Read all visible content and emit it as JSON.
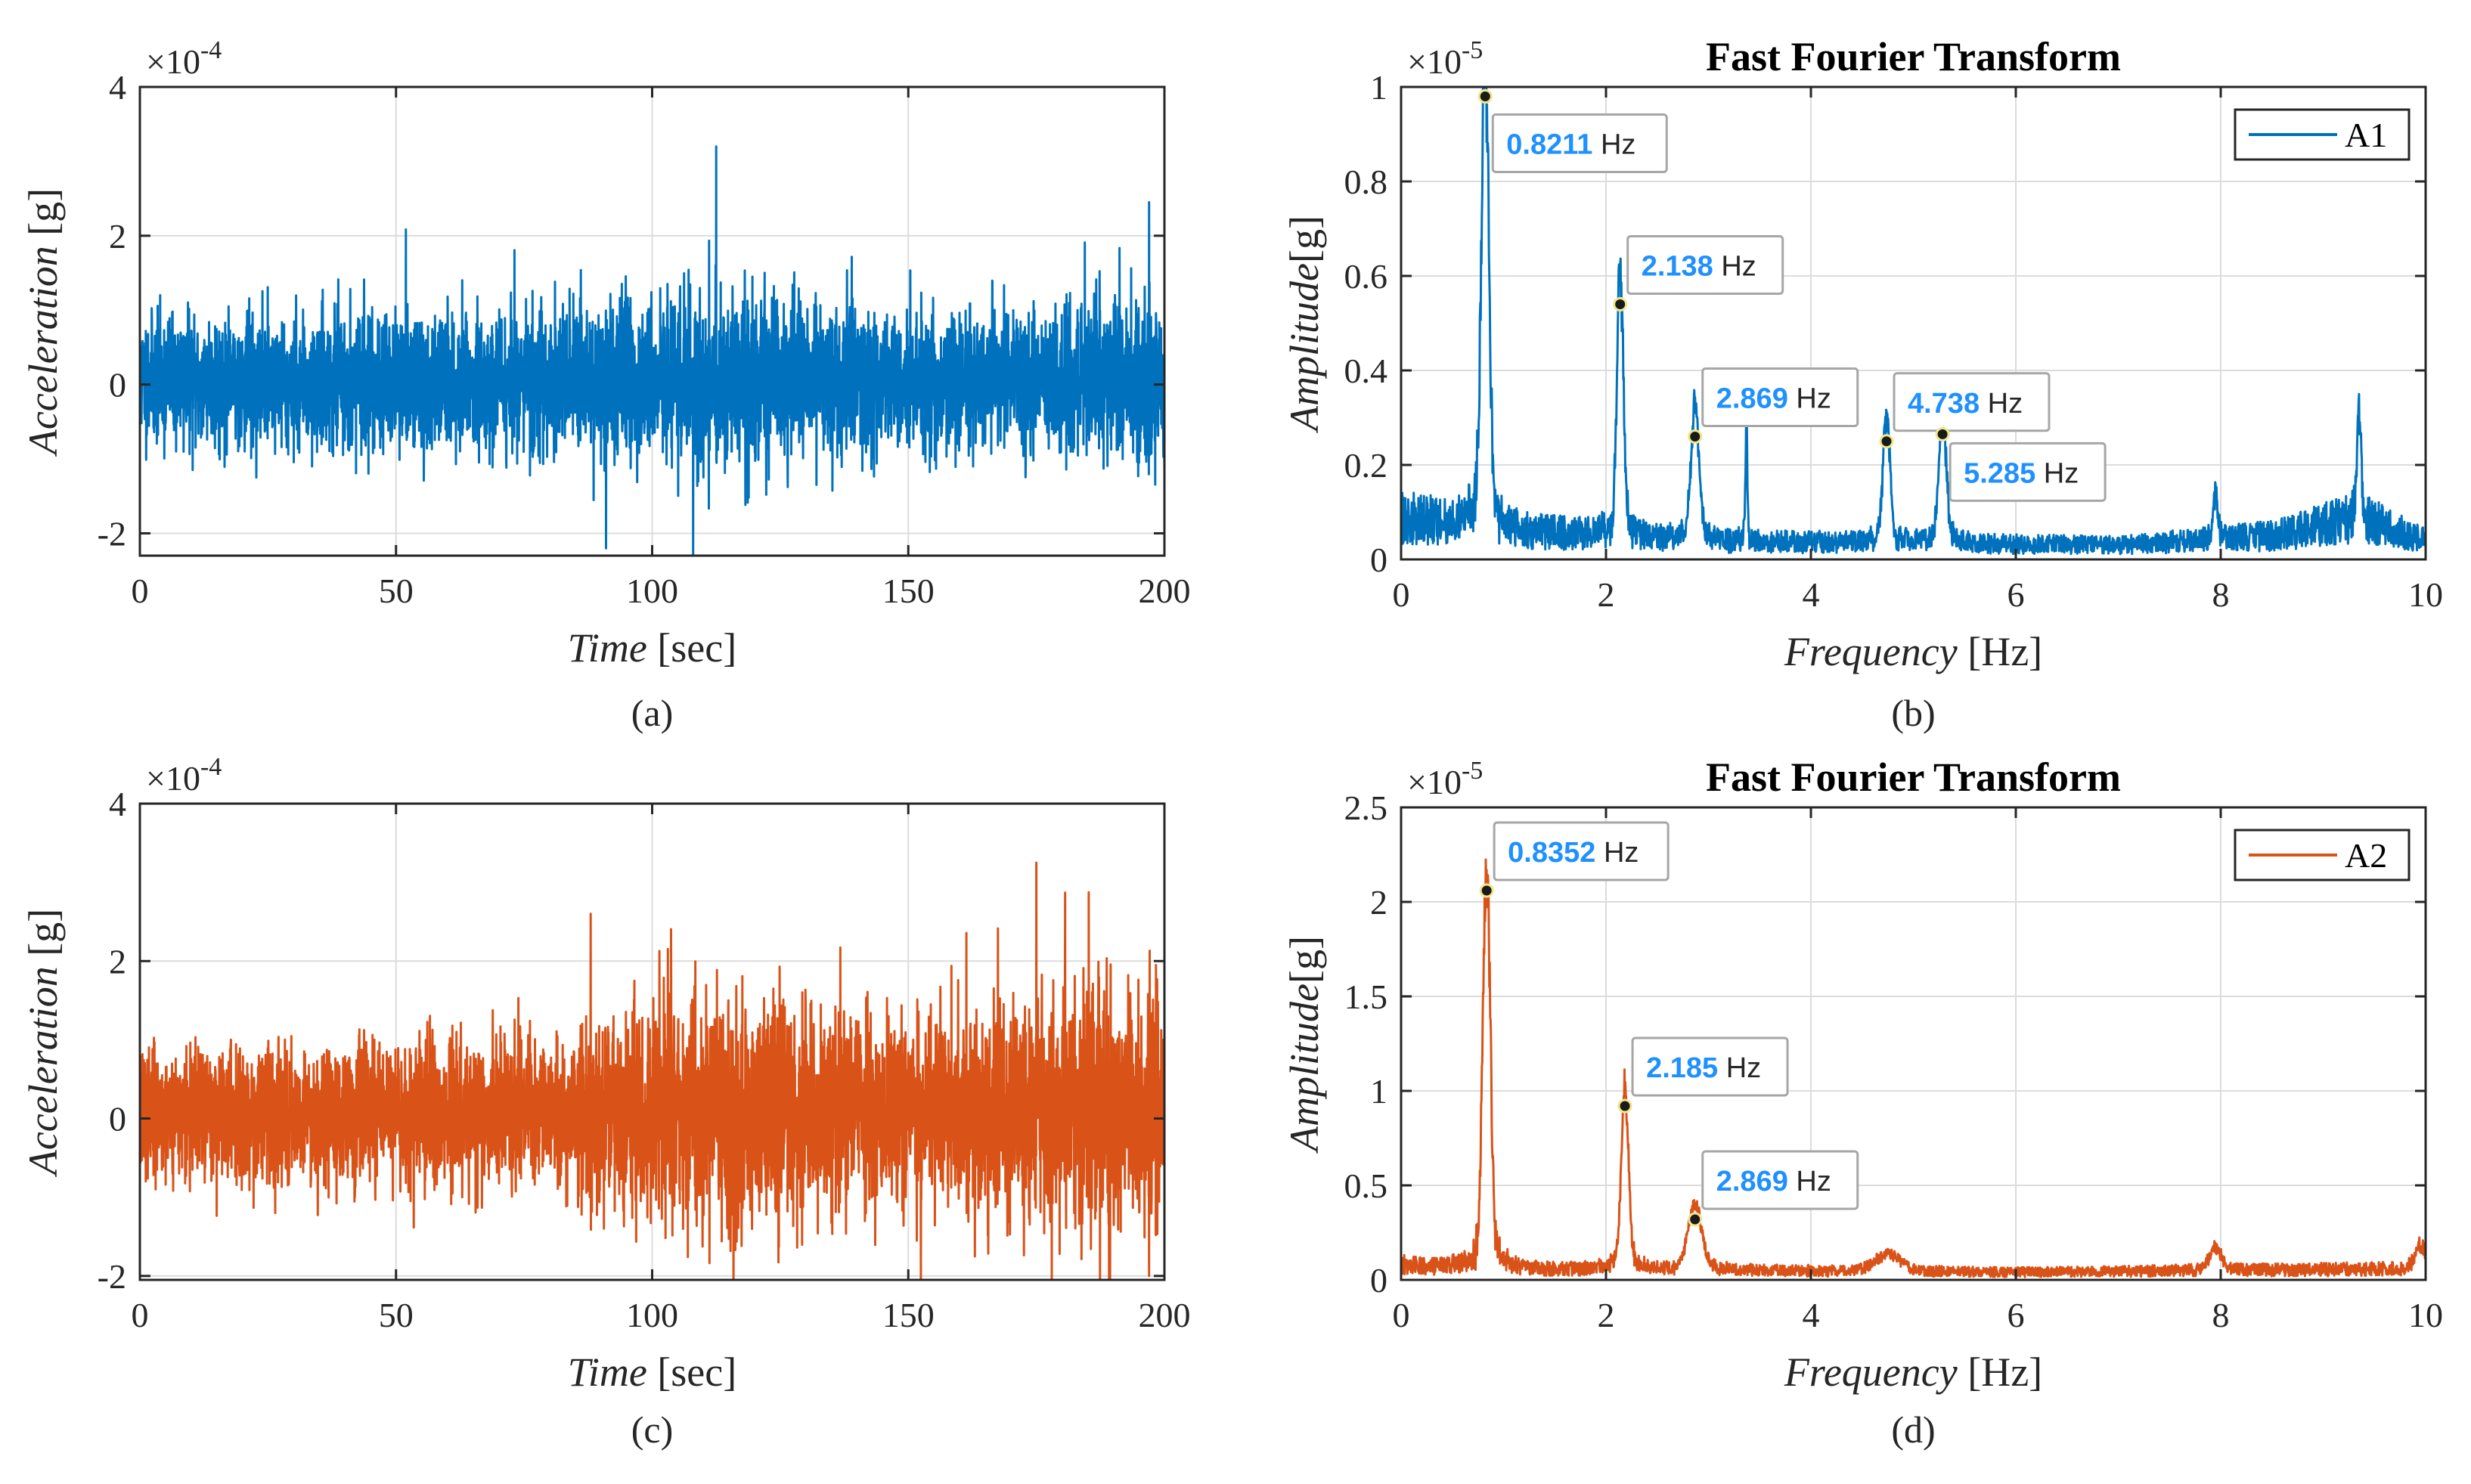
{
  "chart_data": [
    {
      "id": "a",
      "type": "line",
      "caption": "(a)",
      "title": "",
      "xlabel_italic": "Time",
      "xlabel_unit": "[sec]",
      "ylabel_italic": "Acceleration",
      "ylabel_unit": "[g]",
      "exponent_base": "×10",
      "exponent_power": "-4",
      "xlim": [
        0,
        200
      ],
      "ylim": [
        -2.3,
        4
      ],
      "xticks": [
        0,
        50,
        100,
        150,
        200
      ],
      "yticks": [
        -2,
        0,
        2,
        4
      ],
      "grid": true,
      "series": [
        {
          "name": "A1",
          "color": "#0072BD",
          "kind": "noise",
          "seed": 11,
          "envelope": [
            [
              0,
              1.0
            ],
            [
              40,
              1.05
            ],
            [
              60,
              1.05
            ],
            [
              100,
              1.25
            ],
            [
              115,
              1.35
            ],
            [
              150,
              1.1
            ],
            [
              160,
              1.05
            ],
            [
              175,
              1.2
            ],
            [
              200,
              1.25
            ]
          ],
          "spikes": [
            [
              112.5,
              3.2
            ],
            [
              108,
              -2.3
            ],
            [
              91,
              -2.2
            ],
            [
              197,
              2.45
            ]
          ]
        }
      ]
    },
    {
      "id": "b",
      "type": "line",
      "caption": "(b)",
      "title": "Fast Fourier Transform",
      "xlabel_italic": "Frequency",
      "xlabel_unit": "[Hz]",
      "ylabel_italic": "Amplitude",
      "ylabel_unit": "[g]",
      "exponent_base": "×10",
      "exponent_power": "-5",
      "xlim": [
        0,
        10
      ],
      "ylim": [
        0,
        1
      ],
      "xticks": [
        0,
        2,
        4,
        6,
        8,
        10
      ],
      "yticks": [
        0,
        0.2,
        0.4,
        0.6,
        0.8,
        1
      ],
      "grid": true,
      "legend": {
        "label": "A1",
        "location": "top-right"
      },
      "series": [
        {
          "name": "A1",
          "color": "#0072BD",
          "kind": "spectrum",
          "seed": 23,
          "floor": [
            [
              0,
              0.09
            ],
            [
              1.2,
              0.06
            ],
            [
              3,
              0.04
            ],
            [
              7,
              0.03
            ],
            [
              8.5,
              0.05
            ],
            [
              9.4,
              0.09
            ],
            [
              10,
              0.04
            ]
          ],
          "peaks": [
            [
              0.8211,
              0.98,
              0.035
            ],
            [
              2.138,
              0.54,
              0.03
            ],
            [
              2.869,
              0.26,
              0.04
            ],
            [
              3.37,
              0.27,
              0.008
            ],
            [
              4.738,
              0.25,
              0.035
            ],
            [
              5.285,
              0.265,
              0.035
            ],
            [
              9.35,
              0.19,
              0.02
            ],
            [
              7.95,
              0.1,
              0.02
            ]
          ]
        }
      ],
      "annotations": [
        {
          "x": 0.8211,
          "y": 0.98,
          "value": "0.8211",
          "unit": "Hz",
          "side": "right-below"
        },
        {
          "x": 2.138,
          "y": 0.54,
          "value": "2.138",
          "unit": "Hz",
          "side": "right-above"
        },
        {
          "x": 2.869,
          "y": 0.26,
          "value": "2.869",
          "unit": "Hz",
          "side": "right-above"
        },
        {
          "x": 4.738,
          "y": 0.25,
          "value": "4.738",
          "unit": "Hz",
          "side": "right-above"
        },
        {
          "x": 5.285,
          "y": 0.265,
          "value": "5.285",
          "unit": "Hz",
          "side": "right-below"
        }
      ]
    },
    {
      "id": "c",
      "type": "line",
      "caption": "(c)",
      "title": "",
      "xlabel_italic": "Time",
      "xlabel_unit": "[sec]",
      "ylabel_italic": "Acceleration",
      "ylabel_unit": "[g]",
      "exponent_base": "×10",
      "exponent_power": "-4",
      "xlim": [
        0,
        200
      ],
      "ylim": [
        -2.05,
        4
      ],
      "xticks": [
        0,
        50,
        100,
        150,
        200
      ],
      "yticks": [
        -2,
        0,
        2,
        4
      ],
      "grid": true,
      "series": [
        {
          "name": "A2",
          "color": "#D95319",
          "kind": "noise",
          "seed": 37,
          "envelope": [
            [
              0,
              0.95
            ],
            [
              40,
              1.05
            ],
            [
              80,
              1.05
            ],
            [
              90,
              1.45
            ],
            [
              110,
              1.75
            ],
            [
              125,
              1.55
            ],
            [
              150,
              1.35
            ],
            [
              165,
              1.4
            ],
            [
              180,
              1.75
            ],
            [
              200,
              1.7
            ]
          ],
          "spikes": [
            [
              175,
              3.25
            ],
            [
              178,
              -2.05
            ],
            [
              88,
              2.6
            ],
            [
              197,
              -2.0
            ]
          ]
        }
      ]
    },
    {
      "id": "d",
      "type": "line",
      "caption": "(d)",
      "title": "Fast Fourier Transform",
      "xlabel_italic": "Frequency",
      "xlabel_unit": "[Hz]",
      "ylabel_italic": "Amplitude",
      "ylabel_unit": "[g]",
      "exponent_base": "×10",
      "exponent_power": "-5",
      "xlim": [
        0,
        10
      ],
      "ylim": [
        0,
        2.5
      ],
      "xticks": [
        0,
        2,
        4,
        6,
        8,
        10
      ],
      "yticks": [
        0,
        0.5,
        1,
        1.5,
        2,
        2.5
      ],
      "grid": true,
      "legend": {
        "label": "A2",
        "location": "top-right"
      },
      "series": [
        {
          "name": "A2",
          "color": "#D95319",
          "kind": "spectrum",
          "seed": 51,
          "floor": [
            [
              0,
              0.08
            ],
            [
              1.2,
              0.06
            ],
            [
              3,
              0.05
            ],
            [
              6,
              0.04
            ],
            [
              8,
              0.05
            ],
            [
              10,
              0.06
            ]
          ],
          "peaks": [
            [
              0.8352,
              2.06,
              0.035
            ],
            [
              2.185,
              0.92,
              0.035
            ],
            [
              2.869,
              0.32,
              0.07
            ],
            [
              4.75,
              0.09,
              0.12
            ],
            [
              7.95,
              0.11,
              0.06
            ],
            [
              9.95,
              0.12,
              0.05
            ]
          ]
        }
      ],
      "annotations": [
        {
          "x": 0.8352,
          "y": 2.06,
          "value": "0.8352",
          "unit": "Hz",
          "side": "right-above"
        },
        {
          "x": 2.185,
          "y": 0.92,
          "value": "2.185",
          "unit": "Hz",
          "side": "right-above"
        },
        {
          "x": 2.869,
          "y": 0.32,
          "value": "2.869",
          "unit": "Hz",
          "side": "right-above"
        }
      ]
    }
  ],
  "colors": {
    "tip_value": "#1E90FF",
    "tip_marker": "#1a1a1a",
    "tip_marker_edge": "#f0e68c"
  }
}
